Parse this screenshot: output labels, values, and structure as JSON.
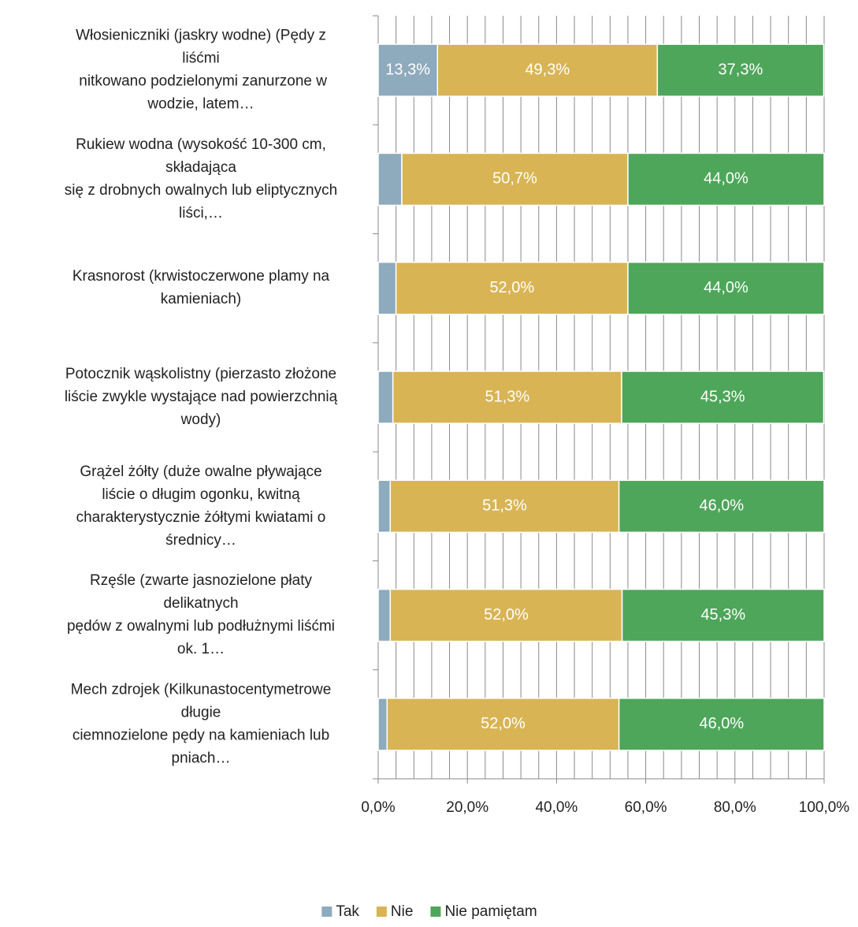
{
  "chart_data": {
    "type": "stacked_barh",
    "categories": [
      "Włosieniczniki (jaskry wodne) (Pędy z\nliśćmi\n nitkowano podzielonymi zanurzone w\nwodzie, latem…",
      "Rukiew wodna (wysokość 10-300 cm,\nskładająca\nsię z drobnych owalnych lub eliptycznych\nliści,…",
      "Krasnorost (krwistoczerwone plamy na\nkamieniach)",
      "Potocznik wąskolistny (pierzasto złożone\nliście zwykle wystające nad powierzchnią\nwody)",
      "Grążel żółty (duże owalne pływające\nliście o długim ogonku, kwitną\ncharakterystycznie żółtymi kwiatami o\nśrednicy…",
      "Rzęśle (zwarte jasnozielone płaty\ndelikatnych\npędów z owalnymi lub podłużnymi liśćmi\nok. 1…",
      "Mech zdrojek (Kilkunastocentymetrowe\ndługie\nciemnozielone pędy na kamieniach lub\npniach…"
    ],
    "series": [
      {
        "name": "Tak",
        "color": "#8eaabd",
        "values": [
          13.3,
          5.3,
          4.0,
          3.3,
          2.7,
          2.7,
          2.0
        ],
        "value_labels": [
          "13,3%",
          null,
          null,
          null,
          null,
          null,
          null
        ]
      },
      {
        "name": "Nie",
        "color": "#d8b454",
        "values": [
          49.3,
          50.7,
          52.0,
          51.3,
          51.3,
          52.0,
          52.0
        ],
        "value_labels": [
          "49,3%",
          "50,7%",
          "52,0%",
          "51,3%",
          "51,3%",
          "52,0%",
          "52,0%"
        ]
      },
      {
        "name": "Nie pamiętam",
        "color": "#4ea65a",
        "values": [
          37.3,
          44.0,
          44.0,
          45.3,
          46.0,
          45.3,
          46.0
        ],
        "value_labels": [
          "37,3%",
          "44,0%",
          "44,0%",
          "45,3%",
          "46,0%",
          "45,3%",
          "46,0%"
        ]
      }
    ],
    "xlim": [
      0,
      100
    ],
    "xticks": [
      {
        "value": 0,
        "label": "0,0%"
      },
      {
        "value": 20,
        "label": "20,0%"
      },
      {
        "value": 40,
        "label": "40,0%"
      },
      {
        "value": 60,
        "label": "60,0%"
      },
      {
        "value": 80,
        "label": "80,0%"
      },
      {
        "value": 100,
        "label": "100,0%"
      }
    ],
    "grid": true,
    "legend": "bottom"
  }
}
